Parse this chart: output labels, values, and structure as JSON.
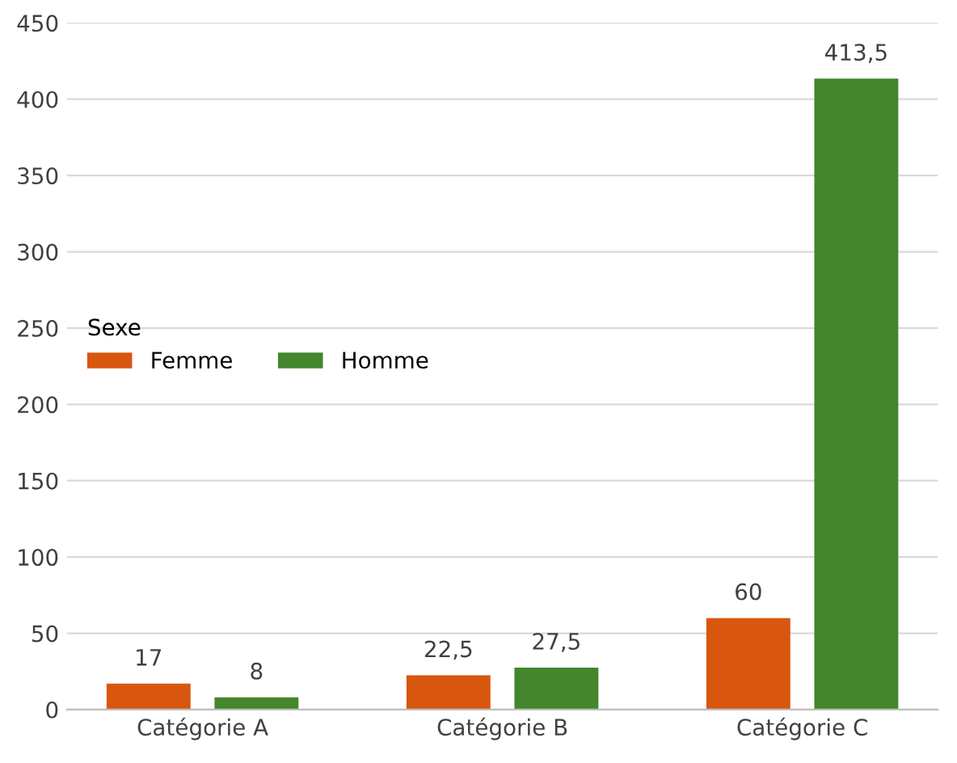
{
  "chart_data": {
    "type": "bar",
    "categories": [
      "Catégorie A",
      "Catégorie B",
      "Catégorie C"
    ],
    "series": [
      {
        "name": "Femme",
        "color": "#d9560f",
        "values": [
          17,
          22.5,
          60
        ],
        "value_labels": [
          "17",
          "22,5",
          "60"
        ]
      },
      {
        "name": "Homme",
        "color": "#43862c",
        "values": [
          8,
          27.5,
          413.5
        ],
        "value_labels": [
          "8",
          "27,5",
          "413,5"
        ]
      }
    ],
    "legend_title": "Sexe",
    "legend": "center left",
    "ylim": [
      0,
      450
    ],
    "yticks": [
      0,
      50,
      100,
      150,
      200,
      250,
      300,
      350,
      400,
      450
    ],
    "grid": "y"
  }
}
